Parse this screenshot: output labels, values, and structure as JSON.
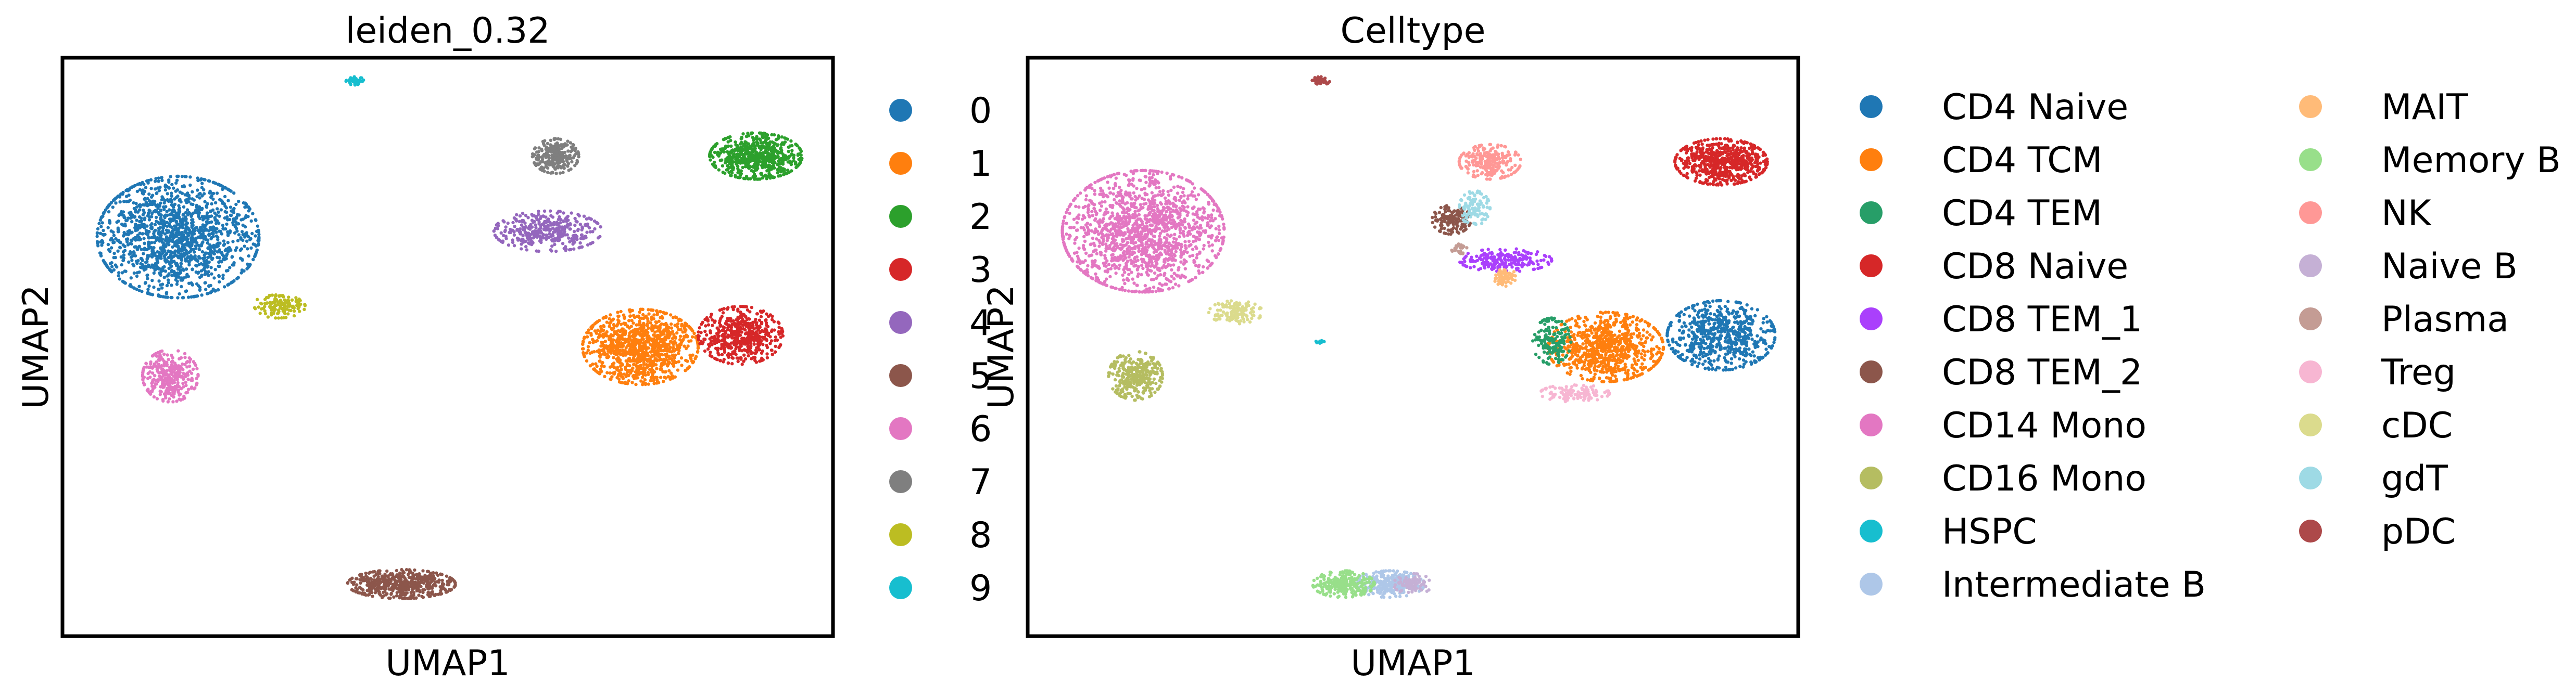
{
  "chart_data": [
    {
      "type": "scatter",
      "title": "leiden_0.32",
      "xlabel": "UMAP1",
      "ylabel": "UMAP2",
      "xlim": [
        0,
        100
      ],
      "ylim": [
        0,
        100
      ],
      "grid": false,
      "ticks": false,
      "legend_placement": "right",
      "legend_columns": 1,
      "clusters": [
        {
          "name": "0",
          "color": "#1f77b4",
          "cx": 15,
          "cy": 69,
          "rx": 10.5,
          "ry": 10.5,
          "n": 1500
        },
        {
          "name": "1",
          "color": "#ff7f0e",
          "cx": 75,
          "cy": 50,
          "rx": 7.5,
          "ry": 6.5,
          "n": 1050
        },
        {
          "name": "2",
          "color": "#2ca02c",
          "cx": 90,
          "cy": 83,
          "rx": 6,
          "ry": 4,
          "n": 650
        },
        {
          "name": "3",
          "color": "#d62728",
          "cx": 88,
          "cy": 52,
          "rx": 5.5,
          "ry": 5,
          "n": 520
        },
        {
          "name": "4",
          "color": "#9467bd",
          "cx": 63,
          "cy": 70,
          "rx": 7,
          "ry": 3.5,
          "n": 380
        },
        {
          "name": "5",
          "color": "#8c564b",
          "cx": 44,
          "cy": 9,
          "rx": 7,
          "ry": 2.5,
          "n": 520
        },
        {
          "name": "6",
          "color": "#e377c2",
          "cx": 14,
          "cy": 45,
          "rx": 3.6,
          "ry": 4.5,
          "n": 330
        },
        {
          "name": "7",
          "color": "#7f7f7f",
          "cx": 64,
          "cy": 83,
          "rx": 3,
          "ry": 3,
          "n": 240
        },
        {
          "name": "8",
          "color": "#bcbd22",
          "cx": 28,
          "cy": 57,
          "rx": 3.5,
          "ry": 2,
          "n": 130
        },
        {
          "name": "9",
          "color": "#17becf",
          "cx": 38,
          "cy": 96,
          "rx": 1.2,
          "ry": 0.7,
          "n": 45
        }
      ]
    },
    {
      "type": "scatter",
      "title": "Celltype",
      "xlabel": "UMAP1",
      "ylabel": "UMAP2",
      "xlim": [
        0,
        100
      ],
      "ylim": [
        0,
        100
      ],
      "grid": false,
      "ticks": false,
      "legend_placement": "right",
      "legend_columns": 2,
      "clusters": [
        {
          "name": "CD4 Naive",
          "color": "#1f77b4",
          "cx": 90,
          "cy": 52,
          "rx": 7,
          "ry": 6,
          "n": 620
        },
        {
          "name": "CD4 TCM",
          "color": "#ff7f0e",
          "cx": 75,
          "cy": 50,
          "rx": 7.5,
          "ry": 6,
          "n": 820
        },
        {
          "name": "CD4 TEM",
          "color": "#279e68",
          "cx": 68,
          "cy": 51,
          "rx": 2.5,
          "ry": 4,
          "n": 160
        },
        {
          "name": "CD8 Naive",
          "color": "#d62728",
          "cx": 90,
          "cy": 82,
          "rx": 6,
          "ry": 4,
          "n": 620
        },
        {
          "name": "CD8 TEM_1",
          "color": "#aa40fc",
          "cx": 62,
          "cy": 65,
          "rx": 6,
          "ry": 2,
          "n": 220
        },
        {
          "name": "CD8 TEM_2",
          "color": "#8c564b",
          "cx": 55,
          "cy": 72,
          "rx": 2.5,
          "ry": 2.5,
          "n": 140
        },
        {
          "name": "CD14 Mono",
          "color": "#e377c2",
          "cx": 15,
          "cy": 70,
          "rx": 10.5,
          "ry": 10.5,
          "n": 1500
        },
        {
          "name": "CD16 Mono",
          "color": "#b5bd61",
          "cx": 14,
          "cy": 45,
          "rx": 3.5,
          "ry": 4.2,
          "n": 330
        },
        {
          "name": "HSPC",
          "color": "#17becf",
          "cx": 38,
          "cy": 51,
          "rx": 0.6,
          "ry": 0.5,
          "n": 12
        },
        {
          "name": "Intermediate B",
          "color": "#aec7e8",
          "cx": 47,
          "cy": 9,
          "rx": 4.5,
          "ry": 2.3,
          "n": 280
        },
        {
          "name": "MAIT",
          "color": "#ffbb78",
          "cx": 62,
          "cy": 62,
          "rx": 1.5,
          "ry": 1.5,
          "n": 70
        },
        {
          "name": "Memory B",
          "color": "#98df8a",
          "cx": 41,
          "cy": 9,
          "rx": 4,
          "ry": 2.3,
          "n": 260
        },
        {
          "name": "NK",
          "color": "#ff9896",
          "cx": 60,
          "cy": 82,
          "rx": 4,
          "ry": 3,
          "n": 240
        },
        {
          "name": "Naive B",
          "color": "#c5b0d5",
          "cx": 50,
          "cy": 9,
          "rx": 2.5,
          "ry": 1.8,
          "n": 80
        },
        {
          "name": "Plasma",
          "color": "#c49c94",
          "cx": 56,
          "cy": 67,
          "rx": 1,
          "ry": 1,
          "n": 25
        },
        {
          "name": "Treg",
          "color": "#f7b6d2",
          "cx": 71,
          "cy": 42,
          "rx": 4.5,
          "ry": 1.5,
          "n": 120
        },
        {
          "name": "cDC",
          "color": "#dbdb8d",
          "cx": 27,
          "cy": 56,
          "rx": 3.5,
          "ry": 2,
          "n": 130
        },
        {
          "name": "gdT",
          "color": "#9edae5",
          "cx": 58,
          "cy": 74,
          "rx": 2,
          "ry": 3,
          "n": 110
        },
        {
          "name": "pDC",
          "color": "#ad494a",
          "cx": 38,
          "cy": 96,
          "rx": 1.2,
          "ry": 0.7,
          "n": 45
        }
      ]
    }
  ]
}
